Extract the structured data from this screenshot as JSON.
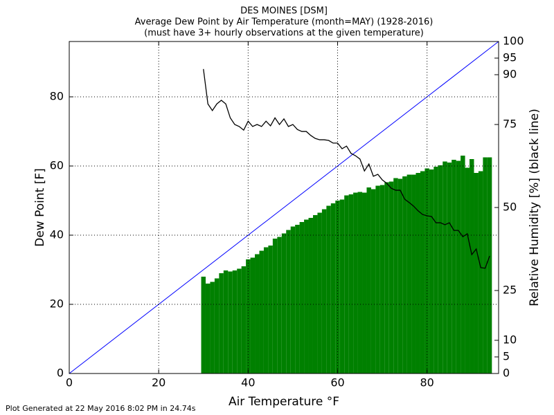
{
  "chart_data": {
    "type": "bar",
    "title": [
      "DES MOINES [DSM]",
      "Average Dew Point by Air Temperature (month=MAY) (1928-2016)",
      "(must have 3+ hourly observations at the given temperature)"
    ],
    "xlabel": "Air Temperature °F",
    "ylabel": "Dew Point [F]",
    "y2label": "Relative Humidity [%] (black line)",
    "x": [
      30,
      31,
      32,
      33,
      34,
      35,
      36,
      37,
      38,
      39,
      40,
      41,
      42,
      43,
      44,
      45,
      46,
      47,
      48,
      49,
      50,
      51,
      52,
      53,
      54,
      55,
      56,
      57,
      58,
      59,
      60,
      61,
      62,
      63,
      64,
      65,
      66,
      67,
      68,
      69,
      70,
      71,
      72,
      73,
      74,
      75,
      76,
      77,
      78,
      79,
      80,
      81,
      82,
      83,
      84,
      85,
      86,
      87,
      88,
      89,
      90,
      91,
      92,
      93,
      94
    ],
    "series": [
      {
        "type": "bar",
        "color": "#008000",
        "values": [
          28,
          26,
          26.5,
          27.5,
          29,
          29.8,
          29.5,
          29.8,
          30.3,
          31,
          33,
          33.5,
          34.5,
          35.5,
          36.5,
          37,
          39,
          39.5,
          40.5,
          41.5,
          42.5,
          43,
          43.8,
          44.5,
          45,
          45.8,
          46.5,
          47.5,
          48.5,
          49.2,
          50,
          50.3,
          51.5,
          51.8,
          52.3,
          52.5,
          52.3,
          53.8,
          53.3,
          54.3,
          54.5,
          55.3,
          55.5,
          56.5,
          56.3,
          57,
          57.5,
          57.5,
          58,
          58.5,
          59.3,
          59,
          59.8,
          60.2,
          61.3,
          61,
          61.8,
          61.5,
          63,
          59.5,
          62,
          58,
          58.5,
          62.5,
          62.5
        ]
      },
      {
        "type": "line",
        "color": "#000000",
        "axis": "y2",
        "values": [
          91.7,
          81.2,
          79.2,
          81.2,
          82.3,
          81.2,
          77,
          75,
          74.4,
          73.3,
          76,
          74.4,
          75,
          74.4,
          76,
          74.6,
          77,
          75,
          76.7,
          74.4,
          75,
          73.5,
          72.9,
          72.9,
          71.7,
          70.8,
          70.4,
          70.4,
          70.2,
          69.4,
          69.4,
          67.7,
          68.5,
          66.3,
          65.6,
          64.6,
          61,
          63.1,
          59.4,
          60,
          58.3,
          57.3,
          55.8,
          55.2,
          55.2,
          52.5,
          51.5,
          50.4,
          49,
          47.9,
          47.5,
          47.3,
          45.4,
          45.4,
          44.8,
          45.4,
          43.1,
          43.1,
          41.2,
          42.1,
          35.8,
          37.5,
          31.9,
          31.7,
          35.4
        ]
      }
    ],
    "reference_line": {
      "color": "#0000ff"
    },
    "xlim": [
      0,
      96
    ],
    "xticks": [
      0,
      20,
      40,
      60,
      80
    ],
    "ylim": [
      0,
      96
    ],
    "yticks": [
      0,
      20,
      40,
      60,
      80
    ],
    "y2lim": [
      0,
      100
    ],
    "y2ticks": [
      0,
      5,
      10,
      25,
      50,
      75,
      90,
      95,
      100
    ],
    "grid": true
  },
  "footer": "Plot Generated at 22 May 2016 8:02 PM in 24.74s"
}
